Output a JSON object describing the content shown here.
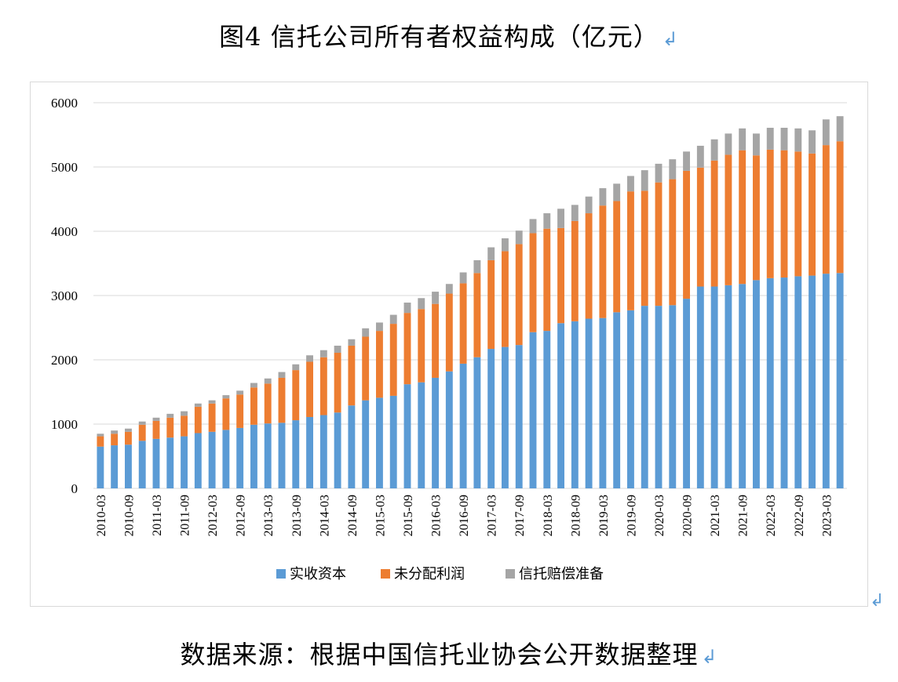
{
  "figure_title": "图4 信托公司所有者权益构成（亿元）",
  "source_note": "数据来源：根据中国信托业协会公开数据整理",
  "return_mark": "↲",
  "colors": {
    "实收资本": "#5b9bd5",
    "未分配利润": "#ed7d31",
    "信托赔偿准备": "#a5a5a5",
    "grid": "#d9d9d9"
  },
  "chart_data": {
    "type": "bar",
    "stacked": true,
    "ylim": [
      0,
      6000
    ],
    "yticks": [
      0,
      1000,
      2000,
      3000,
      4000,
      5000,
      6000
    ],
    "grid": true,
    "legend_position": "bottom",
    "categories": [
      "2010-03",
      "2010-06",
      "2010-09",
      "2010-12",
      "2011-03",
      "2011-06",
      "2011-09",
      "2011-12",
      "2012-03",
      "2012-06",
      "2012-09",
      "2012-12",
      "2013-03",
      "2013-06",
      "2013-09",
      "2013-12",
      "2014-03",
      "2014-06",
      "2014-09",
      "2014-12",
      "2015-03",
      "2015-06",
      "2015-09",
      "2015-12",
      "2016-03",
      "2016-06",
      "2016-09",
      "2016-12",
      "2017-03",
      "2017-06",
      "2017-09",
      "2017-12",
      "2018-03",
      "2018-06",
      "2018-09",
      "2018-12",
      "2019-03",
      "2019-06",
      "2019-09",
      "2019-12",
      "2020-03",
      "2020-06",
      "2020-09",
      "2020-12",
      "2021-03",
      "2021-06",
      "2021-09",
      "2021-12",
      "2022-03",
      "2022-06",
      "2022-09",
      "2022-12",
      "2023-03",
      "2023-06"
    ],
    "x_tick_labels": [
      "2010-03",
      "",
      "2010-09",
      "",
      "2011-03",
      "",
      "2011-09",
      "",
      "2012-03",
      "",
      "2012-09",
      "",
      "2013-03",
      "",
      "2013-09",
      "",
      "2014-03",
      "",
      "2014-09",
      "",
      "2015-03",
      "",
      "2015-09",
      "",
      "2016-03",
      "",
      "2016-09",
      "",
      "2017-03",
      "",
      "2017-09",
      "",
      "2018-03",
      "",
      "2018-09",
      "",
      "2019-03",
      "",
      "2019-09",
      "",
      "2020-03",
      "",
      "2020-09",
      "",
      "2021-03",
      "",
      "2021-09",
      "",
      "2022-03",
      "",
      "2022-09",
      "",
      "2023-03",
      ""
    ],
    "series": [
      {
        "name": "实收资本",
        "values": [
          650,
          670,
          680,
          740,
          770,
          790,
          810,
          860,
          880,
          910,
          940,
          990,
          1010,
          1020,
          1060,
          1110,
          1140,
          1180,
          1290,
          1370,
          1410,
          1440,
          1620,
          1650,
          1720,
          1820,
          1940,
          2040,
          2170,
          2200,
          2230,
          2430,
          2450,
          2570,
          2600,
          2640,
          2650,
          2740,
          2770,
          2840,
          2840,
          2850,
          2950,
          3140,
          3140,
          3160,
          3180,
          3240,
          3270,
          3280,
          3300,
          3310,
          3340,
          3350
        ]
      },
      {
        "name": "未分配利润",
        "values": [
          160,
          180,
          200,
          250,
          280,
          310,
          320,
          410,
          440,
          490,
          520,
          580,
          620,
          700,
          780,
          860,
          900,
          930,
          930,
          990,
          1040,
          1120,
          1110,
          1140,
          1150,
          1210,
          1250,
          1310,
          1380,
          1490,
          1570,
          1540,
          1590,
          1480,
          1560,
          1640,
          1750,
          1730,
          1850,
          1790,
          1920,
          1960,
          1990,
          1850,
          1960,
          2030,
          2080,
          1940,
          2000,
          1980,
          1940,
          1900,
          2000,
          2050
        ]
      },
      {
        "name": "信托赔偿准备",
        "values": [
          40,
          50,
          50,
          50,
          50,
          60,
          70,
          50,
          50,
          50,
          60,
          70,
          80,
          90,
          90,
          100,
          110,
          110,
          100,
          130,
          130,
          140,
          160,
          170,
          190,
          150,
          170,
          200,
          200,
          200,
          210,
          220,
          240,
          300,
          250,
          260,
          270,
          270,
          240,
          320,
          290,
          310,
          300,
          340,
          330,
          330,
          340,
          340,
          340,
          350,
          360,
          360,
          400,
          390
        ]
      }
    ]
  }
}
